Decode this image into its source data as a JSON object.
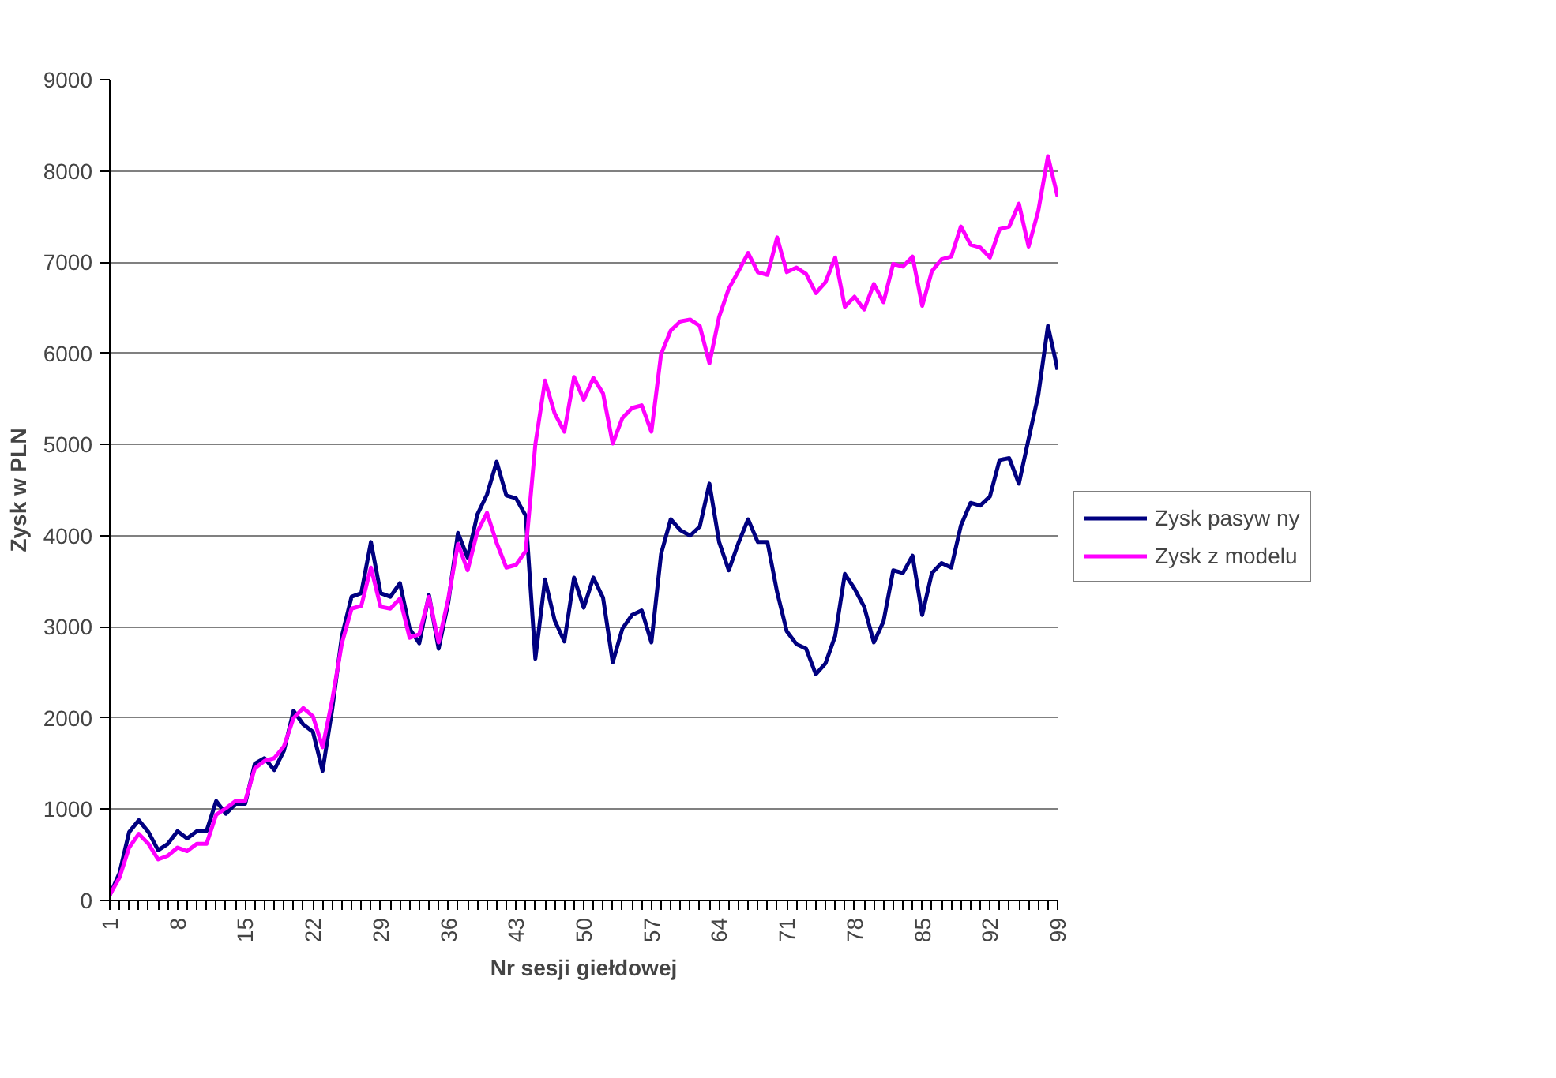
{
  "chart_data": {
    "type": "line",
    "xlabel": "Nr sesji giełdowej",
    "ylabel": "Zysk w PLN",
    "categories": [
      "1",
      null,
      null,
      null,
      null,
      null,
      null,
      "8",
      null,
      null,
      null,
      null,
      null,
      null,
      "15",
      null,
      null,
      null,
      null,
      null,
      null,
      "22",
      null,
      null,
      null,
      null,
      null,
      null,
      "29",
      null,
      null,
      null,
      null,
      null,
      null,
      "36",
      null,
      null,
      null,
      null,
      null,
      null,
      "43",
      null,
      null,
      null,
      null,
      null,
      null,
      "50",
      null,
      null,
      null,
      null,
      null,
      null,
      "57",
      null,
      null,
      null,
      null,
      null,
      null,
      "64",
      null,
      null,
      null,
      null,
      null,
      null,
      "71",
      null,
      null,
      null,
      null,
      null,
      null,
      "78",
      null,
      null,
      null,
      null,
      null,
      null,
      "85",
      null,
      null,
      null,
      null,
      null,
      null,
      "92",
      null,
      null,
      null,
      null,
      null,
      null,
      "99"
    ],
    "series": [
      {
        "name": "Zysk pasyw ny",
        "color": "#000080",
        "values": [
          60,
          300,
          750,
          880,
          750,
          550,
          620,
          760,
          680,
          760,
          760,
          1090,
          950,
          1060,
          1060,
          1500,
          1560,
          1430,
          1640,
          2080,
          1930,
          1850,
          1420,
          2100,
          2900,
          3330,
          3370,
          3930,
          3370,
          3330,
          3480,
          2980,
          2820,
          3350,
          2760,
          3270,
          4030,
          3760,
          4230,
          4450,
          4810,
          4440,
          4410,
          4220,
          2650,
          3520,
          3070,
          2840,
          3540,
          3210,
          3540,
          3320,
          2610,
          2980,
          3130,
          3180,
          2830,
          3800,
          4180,
          4060,
          4000,
          4100,
          4570,
          3930,
          3620,
          3920,
          4180,
          3930,
          3930,
          3380,
          2950,
          2810,
          2760,
          2480,
          2600,
          2900,
          3580,
          3420,
          3220,
          2830,
          3060,
          3620,
          3590,
          3780,
          3130,
          3590,
          3700,
          3650,
          4110,
          4360,
          4330,
          4430,
          4830,
          4850,
          4570,
          5060,
          5540,
          6300,
          5820
        ]
      },
      {
        "name": "Zysk z modelu",
        "color": "#ff00ff",
        "values": [
          60,
          250,
          580,
          730,
          620,
          450,
          490,
          580,
          540,
          620,
          620,
          940,
          1010,
          1090,
          1090,
          1450,
          1530,
          1560,
          1690,
          2000,
          2110,
          2020,
          1680,
          2200,
          2820,
          3200,
          3230,
          3650,
          3220,
          3200,
          3310,
          2880,
          2920,
          3330,
          2830,
          3310,
          3910,
          3620,
          4040,
          4250,
          3920,
          3650,
          3680,
          3830,
          5000,
          5700,
          5340,
          5140,
          5740,
          5490,
          5730,
          5560,
          5010,
          5290,
          5400,
          5430,
          5140,
          5990,
          6250,
          6350,
          6370,
          6300,
          5890,
          6400,
          6710,
          6900,
          7100,
          6890,
          6860,
          7270,
          6890,
          6940,
          6870,
          6660,
          6780,
          7050,
          6510,
          6620,
          6480,
          6760,
          6560,
          6980,
          6950,
          7060,
          6520,
          6900,
          7030,
          7060,
          7390,
          7190,
          7160,
          7050,
          7360,
          7390,
          7640,
          7170,
          7560,
          8160,
          7720
        ]
      }
    ],
    "ylim": [
      0,
      9000
    ],
    "yticks": [
      0,
      1000,
      2000,
      3000,
      4000,
      5000,
      6000,
      7000,
      8000,
      9000
    ],
    "grid": "y",
    "legend": "right",
    "marker": "none",
    "line_style": "solid"
  }
}
